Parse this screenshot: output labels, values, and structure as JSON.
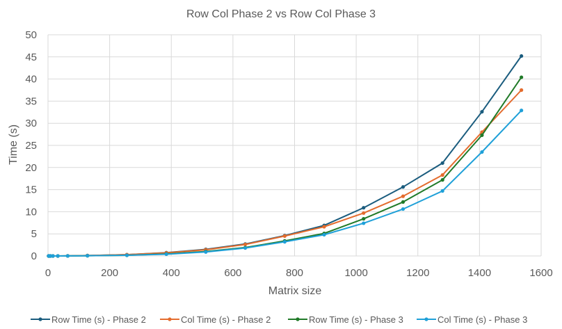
{
  "chart_data": {
    "type": "line",
    "title": "Row Col Phase 2 vs Row Col Phase 3",
    "xlabel": "Matrix size",
    "ylabel": "Time (s)",
    "xlim": [
      0,
      1600
    ],
    "ylim": [
      0,
      50
    ],
    "x_ticks": [
      0,
      200,
      400,
      600,
      800,
      1000,
      1200,
      1400,
      1600
    ],
    "y_ticks": [
      0,
      5,
      10,
      15,
      20,
      25,
      30,
      35,
      40,
      45,
      50
    ],
    "grid": "vertical and horizontal major gridlines",
    "legend_position": "bottom",
    "x": [
      2,
      4,
      8,
      16,
      32,
      64,
      128,
      256,
      384,
      512,
      640,
      768,
      896,
      1024,
      1152,
      1280,
      1408,
      1536
    ],
    "series": [
      {
        "name": "Row Time (s) - Phase 2",
        "color": "#1a5c7e",
        "values": [
          0,
          0,
          0,
          0,
          0,
          0.02,
          0.1,
          0.3,
          0.75,
          1.5,
          2.7,
          4.6,
          6.9,
          10.9,
          15.6,
          21.0,
          32.6,
          45.2
        ]
      },
      {
        "name": "Col Time (s) - Phase 2",
        "color": "#e46c2e",
        "values": [
          0,
          0,
          0,
          0,
          0,
          0.02,
          0.1,
          0.3,
          0.7,
          1.4,
          2.6,
          4.5,
          6.6,
          9.7,
          13.5,
          18.3,
          28.0,
          37.5
        ]
      },
      {
        "name": "Row Time (s) - Phase 3",
        "color": "#207a28",
        "values": [
          0,
          0,
          0,
          0,
          0,
          0.01,
          0.05,
          0.15,
          0.45,
          1.0,
          1.9,
          3.4,
          5.1,
          8.4,
          12.2,
          17.2,
          27.3,
          40.4
        ]
      },
      {
        "name": "Col Time (s) - Phase 3",
        "color": "#1fa0d8",
        "values": [
          0,
          0,
          0,
          0,
          0,
          0.01,
          0.05,
          0.15,
          0.4,
          0.9,
          1.8,
          3.2,
          4.8,
          7.4,
          10.6,
          14.7,
          23.5,
          32.9
        ]
      }
    ]
  }
}
